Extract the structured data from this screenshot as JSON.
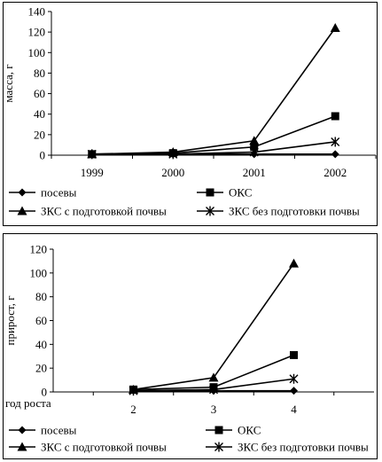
{
  "chart_data": [
    {
      "type": "line",
      "ylabel": "масса, г",
      "xlabel": "",
      "ylim": [
        0,
        140
      ],
      "y_ticks": [
        0,
        20,
        40,
        60,
        80,
        100,
        120,
        140
      ],
      "categories": [
        "1999",
        "2000",
        "2001",
        "2002"
      ],
      "grid": false,
      "legend_position": "bottom",
      "series": [
        {
          "name": "посевы",
          "marker": "diamond",
          "values": [
            1,
            1,
            1,
            1
          ]
        },
        {
          "name": "ОКС",
          "marker": "square",
          "values": [
            1,
            2,
            8,
            38
          ]
        },
        {
          "name": "ЗКС с подготовкой почвы",
          "marker": "triangle",
          "values": [
            1,
            3,
            14,
            124
          ]
        },
        {
          "name": "ЗКС без подготовки почвы",
          "marker": "asterisk",
          "values": [
            1,
            1,
            3,
            13
          ]
        }
      ]
    },
    {
      "type": "line",
      "ylabel": "прирост, г",
      "xlabel": "год роста",
      "ylim": [
        0,
        120
      ],
      "y_ticks": [
        0,
        20,
        40,
        60,
        80,
        100,
        120
      ],
      "categories": [
        "2",
        "3",
        "4"
      ],
      "grid": false,
      "legend_position": "bottom",
      "series": [
        {
          "name": "посевы",
          "marker": "diamond",
          "values": [
            1,
            1,
            1
          ]
        },
        {
          "name": "ОКС",
          "marker": "square",
          "values": [
            2,
            4,
            31
          ]
        },
        {
          "name": "ЗКС с подготовкой почвы",
          "marker": "triangle",
          "values": [
            2,
            12,
            108
          ]
        },
        {
          "name": "ЗКС без подготовки почвы",
          "marker": "asterisk",
          "values": [
            1,
            2,
            11
          ]
        }
      ]
    }
  ]
}
